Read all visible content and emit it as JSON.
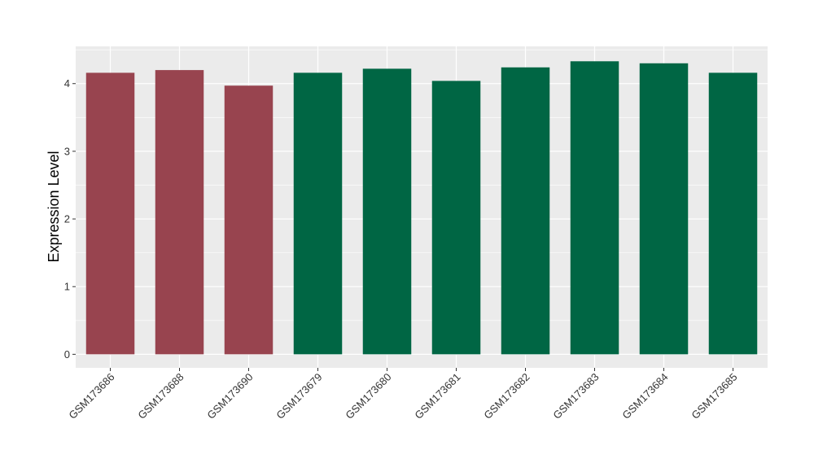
{
  "chart_data": {
    "type": "bar",
    "title": "",
    "xlabel": "",
    "ylabel": "Expression Level",
    "ylim": [
      -0.2,
      4.55
    ],
    "yticks": [
      0,
      1,
      2,
      3,
      4
    ],
    "grid": true,
    "legend": "none",
    "categories": [
      "GSM173686",
      "GSM173688",
      "GSM173690",
      "GSM173679",
      "GSM173680",
      "GSM173681",
      "GSM173682",
      "GSM173683",
      "GSM173684",
      "GSM173685"
    ],
    "values": [
      4.16,
      4.2,
      3.97,
      4.16,
      4.22,
      4.04,
      4.24,
      4.33,
      4.3,
      4.16
    ],
    "bar_colors": [
      "#98444f",
      "#98444f",
      "#98444f",
      "#006644",
      "#006644",
      "#006644",
      "#006644",
      "#006644",
      "#006644",
      "#006644"
    ]
  },
  "colors": {
    "panel_background": "#ebebeb",
    "gridline": "#ffffff",
    "group_a": "#98444f",
    "group_b": "#006644"
  }
}
